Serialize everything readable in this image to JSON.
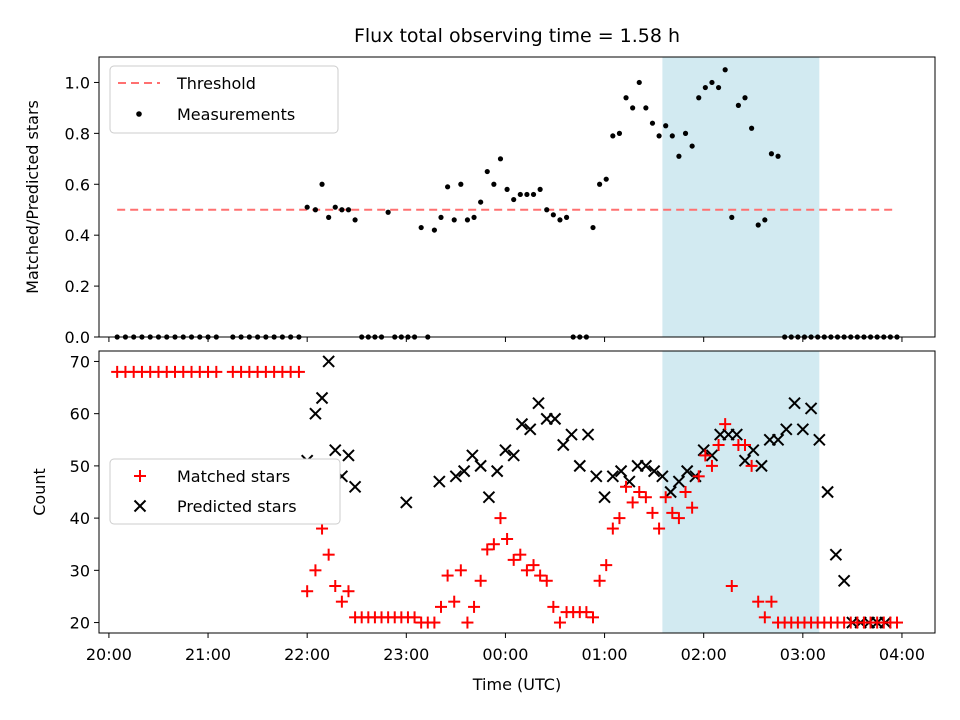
{
  "chart_data": [
    {
      "type": "scatter",
      "title": "Flux total observing time = 1.58 h",
      "xlabel": "",
      "ylabel": "Matched/Predicted stars",
      "ylim": [
        0,
        1.1
      ],
      "xlim": [
        "19:54",
        "04:20"
      ],
      "yticks": [
        "0.0",
        "0.2",
        "0.4",
        "0.6",
        "0.8",
        "1.0"
      ],
      "grid": false,
      "legend_position": "top-left",
      "highlight": {
        "start": "01:35",
        "end": "03:10",
        "color": "#add8e6"
      },
      "threshold": {
        "name": "Threshold",
        "value": 0.5,
        "x_start": "20:05",
        "x_end": "03:55",
        "color": "#ff7070"
      },
      "series": [
        {
          "name": "Measurements",
          "color": "#000000",
          "x": [
            "20:05",
            "20:10",
            "20:15",
            "20:20",
            "20:25",
            "20:30",
            "20:35",
            "20:40",
            "20:45",
            "20:50",
            "20:55",
            "21:00",
            "21:05",
            "21:15",
            "21:20",
            "21:25",
            "21:30",
            "21:35",
            "21:40",
            "21:45",
            "21:50",
            "21:55",
            "22:00",
            "22:05",
            "22:09",
            "22:13",
            "22:17",
            "22:21",
            "22:25",
            "22:29",
            "22:33",
            "22:37",
            "22:41",
            "22:45",
            "22:49",
            "22:53",
            "22:57",
            "23:01",
            "23:05",
            "23:09",
            "23:13",
            "23:17",
            "23:21",
            "23:25",
            "23:29",
            "23:33",
            "23:37",
            "23:41",
            "23:45",
            "23:49",
            "23:53",
            "23:57",
            "00:01",
            "00:05",
            "00:09",
            "00:13",
            "00:17",
            "00:21",
            "00:25",
            "00:29",
            "00:33",
            "00:37",
            "00:41",
            "00:45",
            "00:49",
            "00:53",
            "00:57",
            "01:01",
            "01:05",
            "01:09",
            "01:13",
            "01:17",
            "01:21",
            "01:25",
            "01:29",
            "01:33",
            "01:37",
            "01:41",
            "01:45",
            "01:49",
            "01:53",
            "01:57",
            "02:01",
            "02:05",
            "02:09",
            "02:13",
            "02:17",
            "02:21",
            "02:25",
            "02:29",
            "02:33",
            "02:37",
            "02:41",
            "02:45",
            "02:49",
            "02:53",
            "02:57",
            "03:01",
            "03:05",
            "03:09",
            "03:13",
            "03:17",
            "03:21",
            "03:25",
            "03:29",
            "03:33",
            "03:37",
            "03:41",
            "03:45",
            "03:49",
            "03:53",
            "03:57"
          ],
          "y": [
            0,
            0,
            0,
            0,
            0,
            0,
            0,
            0,
            0,
            0,
            0,
            0,
            0,
            0,
            0,
            0,
            0,
            0,
            0,
            0,
            0,
            0,
            0.51,
            0.5,
            0.6,
            0.47,
            0.51,
            0.5,
            0.5,
            0.46,
            0,
            0,
            0,
            0,
            0.49,
            0,
            0,
            0,
            0,
            0.43,
            0,
            0.42,
            0.47,
            0.59,
            0.46,
            0.6,
            0.46,
            0.47,
            0.53,
            0.65,
            0.6,
            0.7,
            0.58,
            0.54,
            0.56,
            0.56,
            0.56,
            0.58,
            0.5,
            0.48,
            0.46,
            0.47,
            0,
            0,
            0,
            0.43,
            0.6,
            0.62,
            0.79,
            0.8,
            0.94,
            0.9,
            1.0,
            0.9,
            0.84,
            0.79,
            0.83,
            0.79,
            0.71,
            0.8,
            0.75,
            0.94,
            0.98,
            1.0,
            0.98,
            1.05,
            0.47,
            0.91,
            0.94,
            0.82,
            0.44,
            0.46,
            0.72,
            0.71,
            0,
            0,
            0,
            0,
            0,
            0,
            0,
            0,
            0,
            0,
            0,
            0,
            0,
            0,
            0,
            0,
            0,
            0
          ]
        }
      ]
    },
    {
      "type": "scatter",
      "title": "",
      "xlabel": "Time (UTC)",
      "ylabel": "Count",
      "ylim": [
        18,
        72
      ],
      "xlim": [
        "19:54",
        "04:20"
      ],
      "xticks": [
        "20:00",
        "21:00",
        "22:00",
        "23:00",
        "00:00",
        "01:00",
        "02:00",
        "03:00",
        "04:00"
      ],
      "yticks": [
        "20",
        "30",
        "40",
        "50",
        "60",
        "70"
      ],
      "grid": false,
      "legend_position": "center-left",
      "highlight": {
        "start": "01:35",
        "end": "03:10",
        "color": "#add8e6"
      },
      "series": [
        {
          "name": "Matched stars",
          "marker": "+",
          "color": "#ff0000",
          "x": [
            "20:05",
            "20:10",
            "20:15",
            "20:20",
            "20:25",
            "20:30",
            "20:35",
            "20:40",
            "20:45",
            "20:50",
            "20:55",
            "21:00",
            "21:05",
            "21:15",
            "21:20",
            "21:25",
            "21:30",
            "21:35",
            "21:40",
            "21:45",
            "21:50",
            "21:55",
            "22:00",
            "22:05",
            "22:09",
            "22:13",
            "22:17",
            "22:21",
            "22:25",
            "22:29",
            "22:33",
            "22:37",
            "22:41",
            "22:45",
            "22:49",
            "22:53",
            "22:57",
            "23:01",
            "23:05",
            "23:09",
            "23:13",
            "23:17",
            "23:21",
            "23:25",
            "23:29",
            "23:33",
            "23:37",
            "23:41",
            "23:45",
            "23:49",
            "23:53",
            "23:57",
            "00:01",
            "00:05",
            "00:09",
            "00:13",
            "00:17",
            "00:21",
            "00:25",
            "00:29",
            "00:33",
            "00:37",
            "00:41",
            "00:45",
            "00:49",
            "00:53",
            "00:57",
            "01:01",
            "01:05",
            "01:09",
            "01:13",
            "01:17",
            "01:21",
            "01:25",
            "01:29",
            "01:33",
            "01:37",
            "01:41",
            "01:45",
            "01:49",
            "01:53",
            "01:57",
            "02:01",
            "02:05",
            "02:09",
            "02:13",
            "02:17",
            "02:21",
            "02:25",
            "02:29",
            "02:33",
            "02:37",
            "02:41",
            "02:45",
            "02:49",
            "02:53",
            "02:57",
            "03:01",
            "03:05",
            "03:09",
            "03:13",
            "03:17",
            "03:21",
            "03:25",
            "03:29",
            "03:33",
            "03:37",
            "03:41",
            "03:45",
            "03:49",
            "03:53",
            "03:57"
          ],
          "y": [
            68,
            68,
            68,
            68,
            68,
            68,
            68,
            68,
            68,
            68,
            68,
            68,
            68,
            68,
            68,
            68,
            68,
            68,
            68,
            68,
            68,
            68,
            26,
            30,
            38,
            33,
            27,
            24,
            26,
            21,
            21,
            21,
            21,
            21,
            21,
            21,
            21,
            21,
            21,
            20,
            20,
            20,
            23,
            29,
            24,
            30,
            20,
            23,
            28,
            34,
            35,
            40,
            36,
            32,
            33,
            30,
            31,
            29,
            28,
            23,
            20,
            22,
            22,
            22,
            22,
            21,
            28,
            31,
            38,
            40,
            46,
            43,
            45,
            44,
            41,
            38,
            44,
            41,
            40,
            45,
            42,
            48,
            52,
            50,
            54,
            58,
            27,
            54,
            54,
            50,
            24,
            21,
            24,
            20,
            20,
            20,
            20,
            20,
            20,
            20,
            20,
            20,
            20,
            20,
            20,
            20,
            20,
            20,
            20,
            20,
            20,
            20
          ]
        },
        {
          "name": "Predicted stars",
          "marker": "x",
          "color": "#000000",
          "x": [
            "22:00",
            "22:05",
            "22:09",
            "22:13",
            "22:17",
            "22:21",
            "22:25",
            "22:29",
            "23:00",
            "23:20",
            "23:30",
            "23:35",
            "23:40",
            "23:45",
            "23:50",
            "23:55",
            "00:00",
            "00:05",
            "00:10",
            "00:15",
            "00:20",
            "00:25",
            "00:30",
            "00:35",
            "00:40",
            "00:45",
            "00:50",
            "00:55",
            "01:00",
            "01:05",
            "01:10",
            "01:15",
            "01:20",
            "01:25",
            "01:30",
            "01:35",
            "01:40",
            "01:45",
            "01:50",
            "01:55",
            "02:00",
            "02:05",
            "02:10",
            "02:15",
            "02:20",
            "02:25",
            "02:30",
            "02:35",
            "02:40",
            "02:45",
            "02:50",
            "02:55",
            "03:00",
            "03:05",
            "03:10",
            "03:15",
            "03:20",
            "03:25",
            "03:30",
            "03:35",
            "03:40",
            "03:45",
            "03:50"
          ],
          "y": [
            51,
            60,
            63,
            70,
            53,
            48,
            52,
            46,
            43,
            47,
            48,
            49,
            52,
            50,
            44,
            49,
            53,
            52,
            58,
            57,
            62,
            59,
            59,
            54,
            56,
            50,
            56,
            48,
            44,
            48,
            49,
            47,
            50,
            50,
            49,
            48,
            45,
            47,
            49,
            48,
            53,
            52,
            56,
            56,
            56,
            51,
            53,
            50,
            55,
            55,
            57,
            62,
            57,
            61,
            55,
            45,
            33,
            28,
            20,
            20,
            20,
            20,
            20
          ]
        }
      ]
    }
  ]
}
